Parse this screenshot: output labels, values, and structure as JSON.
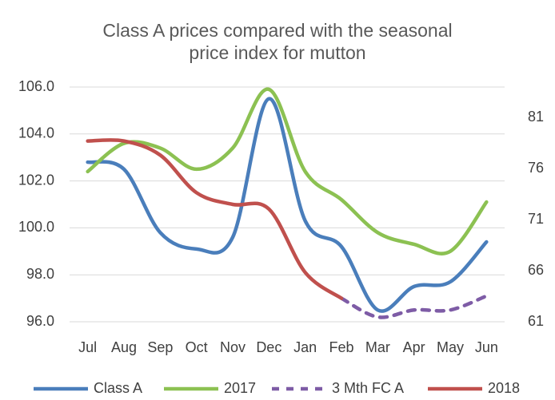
{
  "chart_data": {
    "type": "line",
    "title": [
      "Class A prices compared with the seasonal",
      "price index for mutton"
    ],
    "categories": [
      "Jul",
      "Aug",
      "Sep",
      "Oct",
      "Nov",
      "Dec",
      "Jan",
      "Feb",
      "Mar",
      "Apr",
      "May",
      "Jun"
    ],
    "series": [
      {
        "name": "Class A",
        "color": "#4a7ebb",
        "values": [
          102.8,
          102.5,
          99.8,
          99.1,
          99.6,
          105.5,
          100.3,
          99.2,
          96.5,
          97.5,
          97.7,
          99.4
        ]
      },
      {
        "name": "2017",
        "color": "#8cc152",
        "values": [
          102.4,
          103.6,
          103.4,
          102.5,
          103.4,
          105.9,
          102.4,
          101.2,
          99.8,
          99.3,
          99.0,
          101.1
        ]
      },
      {
        "name": "3 Mth FC A",
        "color": "#7e5ca6",
        "dashed": true,
        "values": [
          null,
          null,
          null,
          null,
          null,
          null,
          null,
          97.0,
          96.2,
          96.5,
          96.5,
          97.1
        ]
      },
      {
        "name": "2018",
        "color": "#c0504d",
        "values": [
          103.7,
          103.7,
          103.1,
          101.5,
          101.0,
          100.8,
          98.1,
          97.0,
          null,
          null,
          null,
          null
        ]
      }
    ],
    "ylim": [
      96,
      106
    ],
    "yticks": [
      {
        "value": 96,
        "label": "96.0"
      },
      {
        "value": 98,
        "label": "98.0"
      },
      {
        "value": 100,
        "label": "100.0"
      },
      {
        "value": 102,
        "label": "102.0"
      },
      {
        "value": 104,
        "label": "104.0"
      },
      {
        "value": 106,
        "label": "106.0"
      }
    ],
    "y2lim": [
      61,
      84
    ],
    "y2ticks": [
      61,
      66,
      71,
      76,
      81
    ],
    "grid": true,
    "legend": "bottom"
  }
}
